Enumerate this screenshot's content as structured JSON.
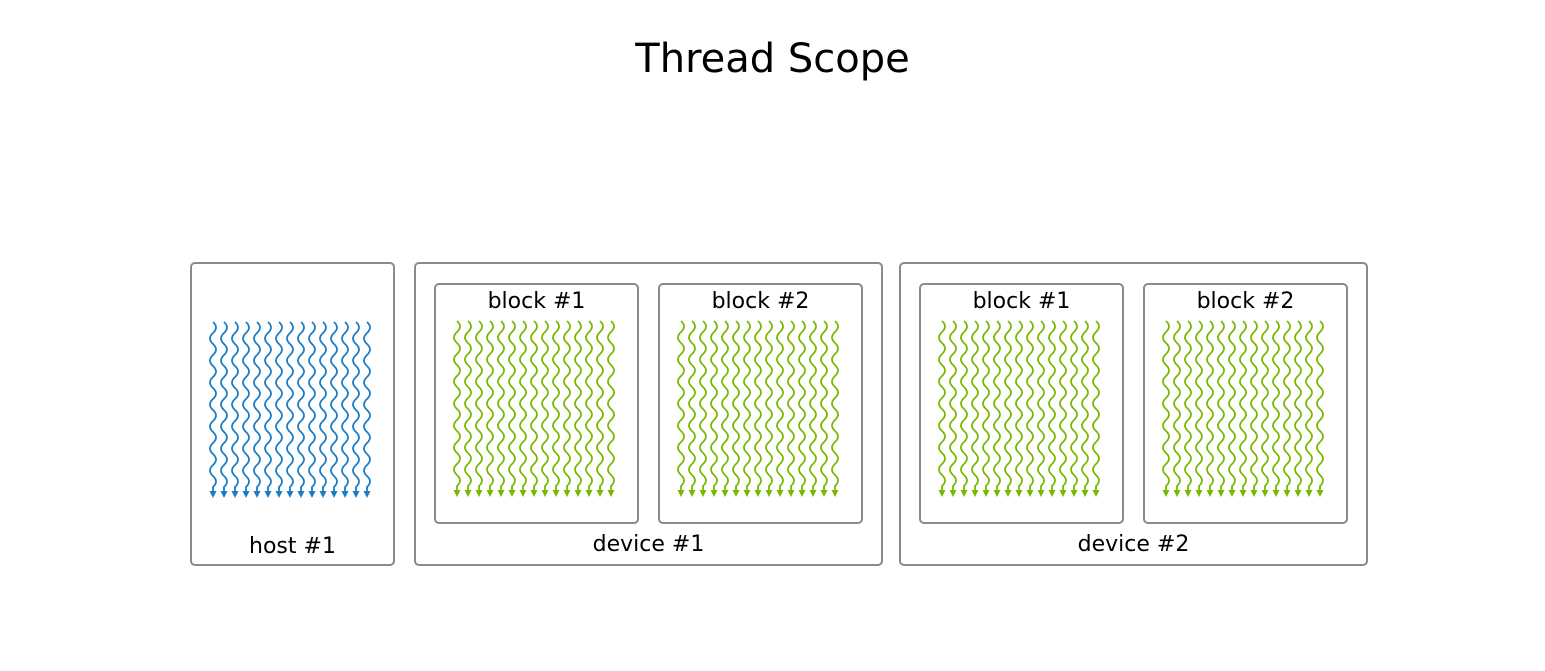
{
  "title": "Thread Scope",
  "colors": {
    "host_thread": "#1a7cc4",
    "device_thread": "#76b900",
    "border": "#8a8a8a"
  },
  "host": {
    "label": "host #1",
    "thread_icon": "wavy-thread-icon"
  },
  "devices": [
    {
      "label": "device #1",
      "blocks": [
        {
          "label": "block #1"
        },
        {
          "label": "block #2"
        }
      ]
    },
    {
      "label": "device #2",
      "blocks": [
        {
          "label": "block #1"
        },
        {
          "label": "block #2"
        }
      ]
    }
  ]
}
